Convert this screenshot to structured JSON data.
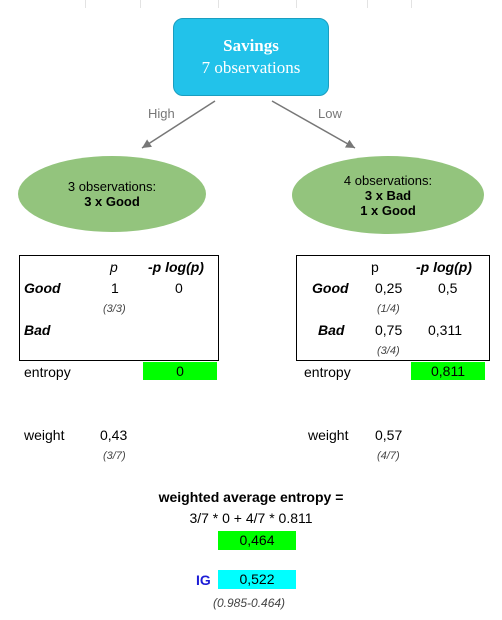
{
  "root": {
    "title": "Savings",
    "subtitle": "7 observations"
  },
  "edges": {
    "left_label": "High",
    "right_label": "Low"
  },
  "left_leaf": {
    "line1": "3 observations:",
    "line2": "3 x Good"
  },
  "right_leaf": {
    "line1": "4 observations:",
    "line2": "3 x Bad",
    "line3": "1 x Good"
  },
  "left_table": {
    "col_p": "p",
    "col_plogp": "-p log(p)",
    "good_label": "Good",
    "good_p": "1",
    "good_frac": "(3/3)",
    "good_plogp": "0",
    "bad_label": "Bad",
    "entropy_label": "entropy",
    "entropy_value": "0",
    "weight_label": "weight",
    "weight_value": "0,43",
    "weight_frac": "(3/7)"
  },
  "right_table": {
    "col_p": "p",
    "col_plogp": "-p log(p)",
    "good_label": "Good",
    "good_p": "0,25",
    "good_frac": "(1/4)",
    "good_plogp": "0,5",
    "bad_label": "Bad",
    "bad_p": "0,75",
    "bad_frac": "(3/4)",
    "bad_plogp": "0,311",
    "entropy_label": "entropy",
    "entropy_value": "0,811",
    "weight_label": "weight",
    "weight_value": "0,57",
    "weight_frac": "(4/7)"
  },
  "summary": {
    "title": "weighted average entropy =",
    "formula": "3/7 * 0 + 4/7 * 0.811",
    "result": "0,464",
    "ig_label": "IG",
    "ig_value": "0,522",
    "ig_note": "(0.985-0.464)"
  },
  "colors": {
    "root_fill": "#22c2ea",
    "leaf_fill": "#93c47d",
    "highlight_green": "#00ff00",
    "highlight_cyan": "#00ffff",
    "ig_label": "#1c1cd6"
  }
}
